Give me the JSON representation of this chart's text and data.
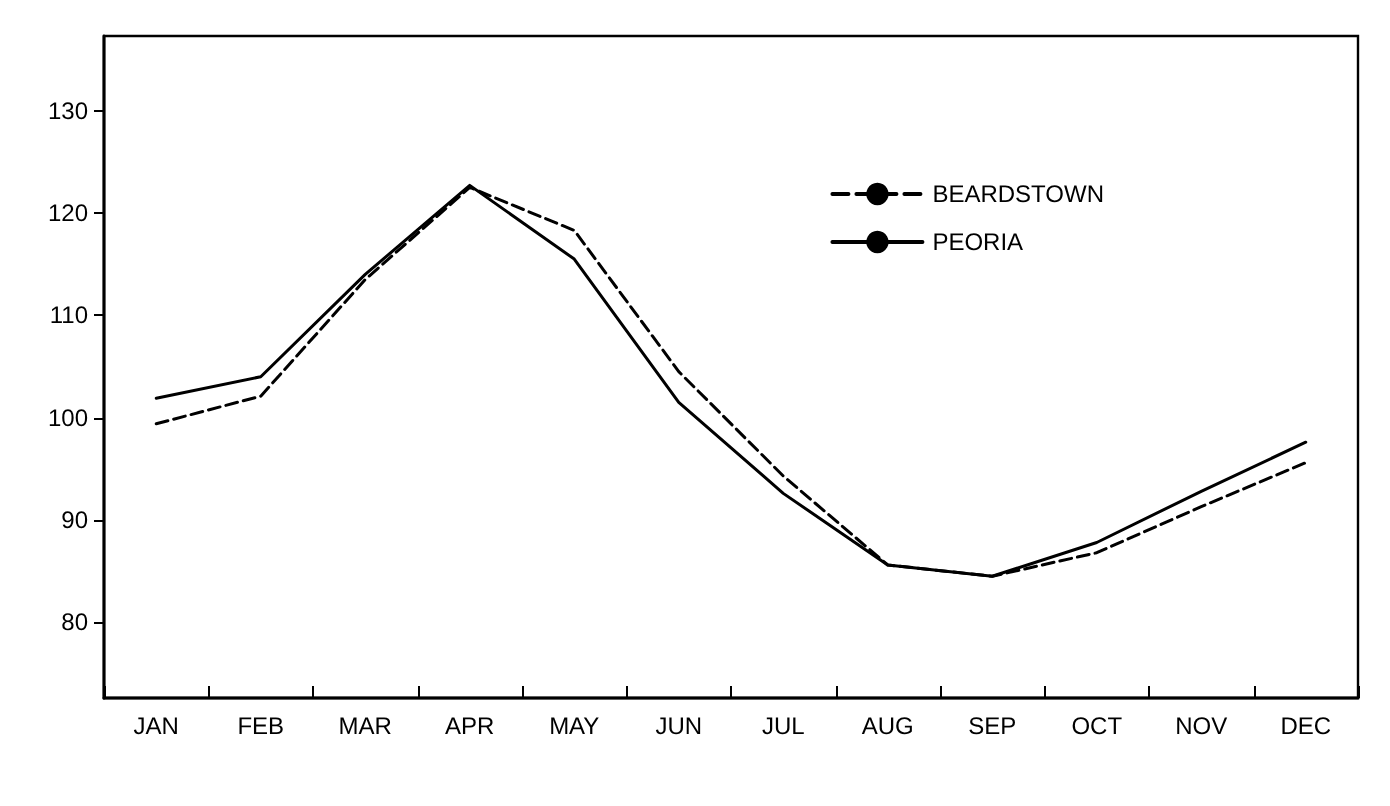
{
  "chart_data": {
    "type": "line",
    "categories": [
      "JAN",
      "FEB",
      "MAR",
      "APR",
      "MAY",
      "JUN",
      "JUL",
      "AUG",
      "SEP",
      "OCT",
      "NOV",
      "DEC"
    ],
    "series": [
      {
        "name": "BEARDSTOWN",
        "color": "#000000",
        "line_style": "dashed",
        "values": [
          99.4,
          102.1,
          113.5,
          122.5,
          118.3,
          104.5,
          94.3,
          85.6,
          84.5,
          86.8,
          91.3,
          95.6
        ]
      },
      {
        "name": "PEORIA",
        "color": "#000000",
        "line_style": "solid",
        "values": [
          101.9,
          104.0,
          114.0,
          122.7,
          115.5,
          101.5,
          92.6,
          85.6,
          84.5,
          87.8,
          92.8,
          97.6
        ]
      }
    ],
    "ylim": [
      72.6,
      137.3
    ],
    "yticks": [
      80,
      90,
      100,
      110,
      120,
      130
    ],
    "grid": false,
    "legend": "top right",
    "marker": "none"
  }
}
